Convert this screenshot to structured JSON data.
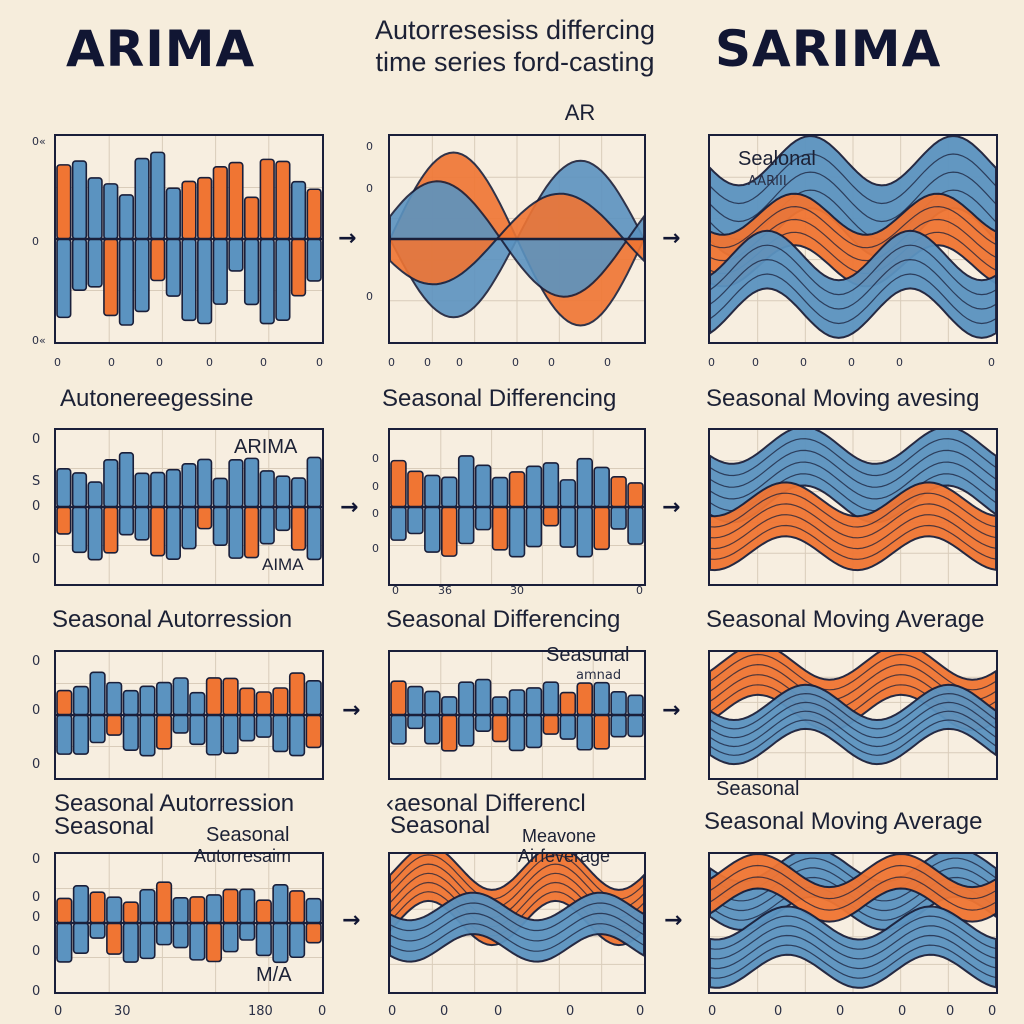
{
  "header": {
    "title_left": "ARIMA",
    "title_right": "SARIMA",
    "subtitle_line1": "Autorresesiss differcing",
    "subtitle_line2": "time series ford-casting",
    "subtitle_line3": "AR"
  },
  "colors": {
    "blue": "#5b93c0",
    "orange": "#f07533",
    "ink": "#1a1f3a",
    "background": "#f6eddc"
  },
  "rows": [
    {
      "captions": [
        "Autonereegessine",
        "Seasonal Differencing",
        "Seasonal Moving avesing"
      ],
      "inner_labels": [
        "Sealonal",
        "AARIII"
      ],
      "ticks": {
        "p1_y": [
          "0«",
          "0",
          "0«"
        ],
        "p1_x": [
          "0",
          "0",
          "0",
          "0",
          "0",
          "0"
        ],
        "p2_y": [
          "0",
          "0",
          "0"
        ],
        "p2_x": [
          "0",
          "0",
          "0",
          "0",
          "0",
          "0"
        ],
        "p3_x": [
          "0",
          "0",
          "0",
          "0",
          "0",
          "0"
        ]
      }
    },
    {
      "captions": [
        "Seasonal Autorression",
        "Seasonal Differencing",
        "Seasonal Moving Average"
      ],
      "inner_labels": [
        "ARIMA",
        "AIMA"
      ],
      "ticks": {
        "p1_y": [
          "0",
          "S",
          "0",
          "0"
        ],
        "p1_x": [
          "0",
          "36",
          "30",
          "0"
        ],
        "p2_y": [
          "0",
          "0",
          "0",
          "0"
        ]
      }
    },
    {
      "captions": [
        "Seasonal Autorression",
        "Seasonal",
        "‹aesonal Differencl",
        "Seasonal Moving Average"
      ],
      "inner_labels": [
        "Seasunal",
        "amnad",
        "Seasonal"
      ],
      "ticks": {
        "p1_y": [
          "0",
          "0",
          "0"
        ]
      }
    },
    {
      "captions": [
        "Seasonal",
        "Autorresaim",
        "Seasonal",
        "Meavone",
        "Airfeverage"
      ],
      "inner_labels": [
        "M/A"
      ],
      "ticks": {
        "p1_y": [
          "0",
          "0",
          "0",
          "0",
          "0"
        ],
        "p1_x": [
          "0",
          "30",
          "180",
          "0"
        ],
        "p2_x": [
          "0",
          "0",
          "0",
          "0",
          "0"
        ],
        "p3_x": [
          "0",
          "0",
          "0",
          "0",
          "0",
          "0"
        ]
      }
    }
  ],
  "arrow_glyph": "→"
}
